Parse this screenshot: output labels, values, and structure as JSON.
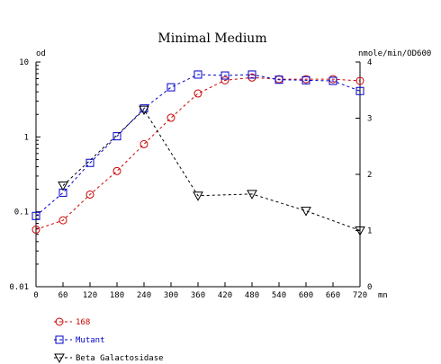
{
  "chart_data": {
    "type": "line",
    "title": "Minimal Medium",
    "xlabel": "mn",
    "ylabel_left": "od",
    "ylabel_right": "nmole/min/OD600",
    "x_ticks": [
      "0",
      "60",
      "120",
      "180",
      "240",
      "300",
      "360",
      "420",
      "480",
      "540",
      "600",
      "660",
      "720"
    ],
    "xlim": [
      0,
      720
    ],
    "y_left_scale": "log",
    "y_left_ticks": [
      "0.01",
      "0.1",
      "1",
      "10"
    ],
    "y_left_lim": [
      0.01,
      10
    ],
    "y_right_ticks": [
      "0",
      "1",
      "2",
      "3",
      "4"
    ],
    "y_right_lim": [
      0,
      4
    ],
    "grid": false,
    "legend_position": "bottom-left",
    "series": [
      {
        "name": "168",
        "axis": "left",
        "marker": "circle",
        "color": "#cc0000",
        "x": [
          0,
          60,
          120,
          180,
          240,
          300,
          360,
          420,
          480,
          540,
          600,
          660,
          720
        ],
        "y": [
          0.058,
          0.077,
          0.17,
          0.35,
          0.8,
          1.8,
          3.8,
          5.7,
          6.2,
          5.9,
          5.9,
          5.9,
          5.6
        ]
      },
      {
        "name": "Mutant",
        "axis": "left",
        "marker": "square",
        "color": "#0000cc",
        "x": [
          0,
          60,
          120,
          180,
          240,
          300,
          360,
          420,
          480,
          540,
          600,
          660,
          720
        ],
        "y": [
          0.088,
          0.18,
          0.45,
          1.02,
          2.4,
          4.6,
          6.8,
          6.6,
          6.8,
          5.8,
          5.7,
          5.6,
          4.1
        ]
      },
      {
        "name": "Beta Galactosidase",
        "axis": "right",
        "marker": "triangle-down",
        "color": "#000000",
        "x": [
          60,
          240,
          360,
          480,
          600,
          720
        ],
        "y": [
          1.8,
          3.15,
          1.62,
          1.65,
          1.35,
          1.0
        ]
      }
    ]
  }
}
